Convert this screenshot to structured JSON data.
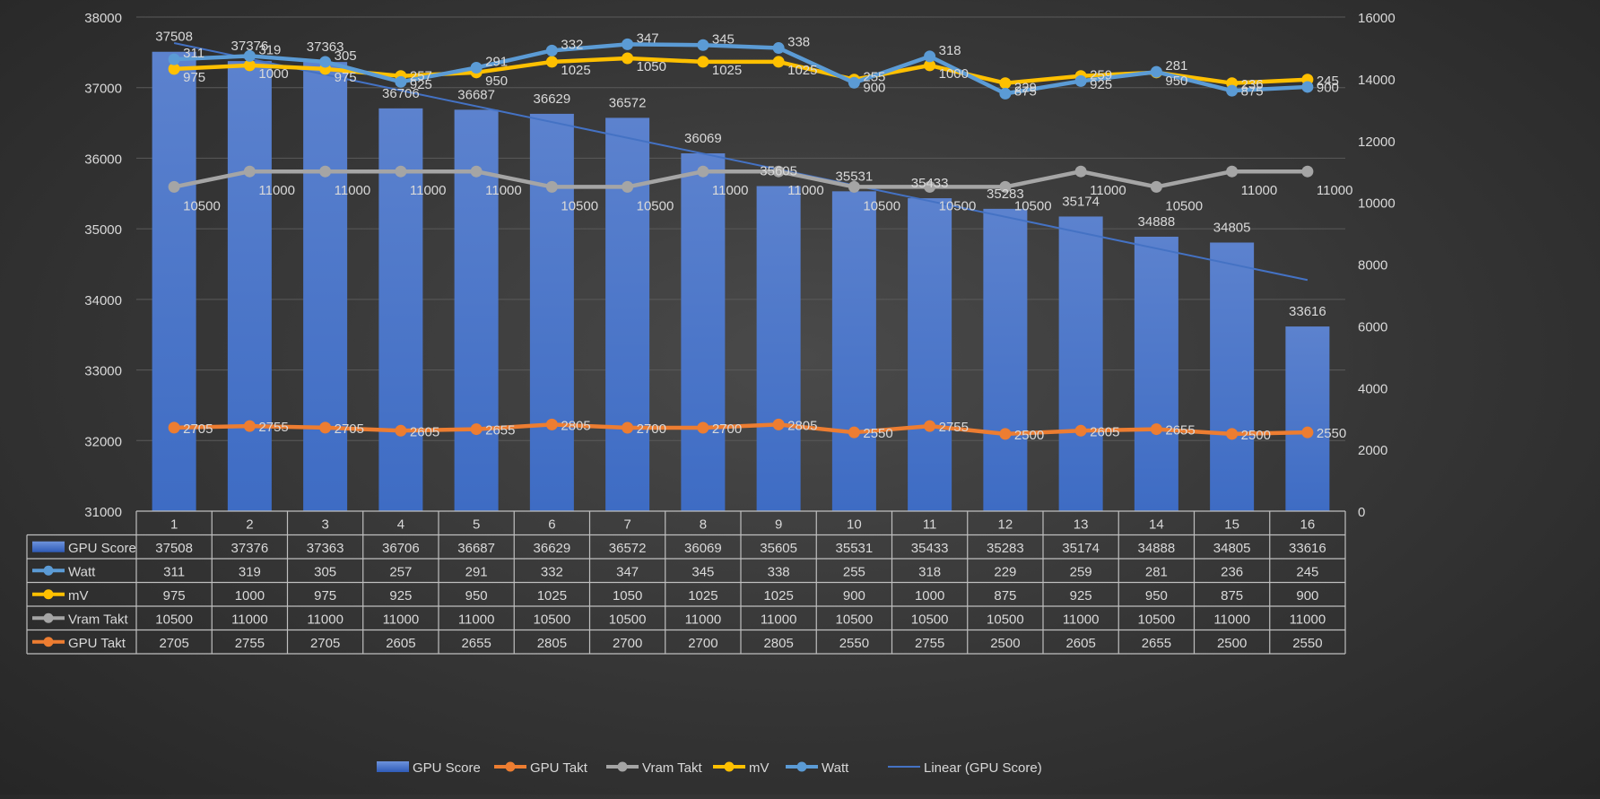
{
  "chart_data": {
    "type": "bar",
    "title": "",
    "categories": [
      "1",
      "2",
      "3",
      "4",
      "5",
      "6",
      "7",
      "8",
      "9",
      "10",
      "11",
      "12",
      "13",
      "14",
      "15",
      "16"
    ],
    "y_left": {
      "ylim": [
        31000,
        38000
      ],
      "ticks": [
        31000,
        32000,
        33000,
        34000,
        35000,
        36000,
        37000,
        38000
      ]
    },
    "y_right": {
      "ylim": [
        0,
        16000
      ],
      "ticks": [
        0,
        2000,
        4000,
        6000,
        8000,
        10000,
        12000,
        14000,
        16000
      ]
    },
    "grid": true,
    "legend_position": "bottom",
    "series": [
      {
        "name": "GPU Score",
        "kind": "bar",
        "axis": "left",
        "color": "#4472C4",
        "values": [
          37508,
          37376,
          37363,
          36706,
          36687,
          36629,
          36572,
          36069,
          35605,
          35531,
          35433,
          35283,
          35174,
          34888,
          34805,
          33616
        ]
      },
      {
        "name": "Watt",
        "kind": "line",
        "axis": "right",
        "color": "#5B9BD5",
        "values": [
          311,
          319,
          305,
          257,
          291,
          332,
          347,
          345,
          338,
          255,
          318,
          229,
          259,
          281,
          236,
          245
        ]
      },
      {
        "name": "mV",
        "kind": "line",
        "axis": "right",
        "color": "#FFC000",
        "values": [
          975,
          1000,
          975,
          925,
          950,
          1025,
          1050,
          1025,
          1025,
          900,
          1000,
          875,
          925,
          950,
          875,
          900
        ]
      },
      {
        "name": "Vram Takt",
        "kind": "line",
        "axis": "right",
        "color": "#A5A5A5",
        "values": [
          10500,
          11000,
          11000,
          11000,
          11000,
          10500,
          10500,
          11000,
          11000,
          10500,
          10500,
          10500,
          11000,
          10500,
          11000,
          11000
        ]
      },
      {
        "name": "GPU Takt",
        "kind": "line",
        "axis": "right",
        "color": "#ED7D31",
        "values": [
          2705,
          2755,
          2705,
          2605,
          2655,
          2805,
          2700,
          2700,
          2805,
          2550,
          2755,
          2500,
          2605,
          2655,
          2500,
          2550
        ]
      }
    ],
    "table_rows": [
      "GPU Score",
      "Watt",
      "mV",
      "Vram Takt",
      "GPU Takt"
    ],
    "legend": [
      "GPU Score",
      "GPU Takt",
      "Vram Takt",
      "mV",
      "Watt",
      "Linear (GPU Score)"
    ],
    "trendline": {
      "name": "Linear (GPU Score)",
      "of": "GPU Score",
      "color": "#4472C4"
    }
  }
}
